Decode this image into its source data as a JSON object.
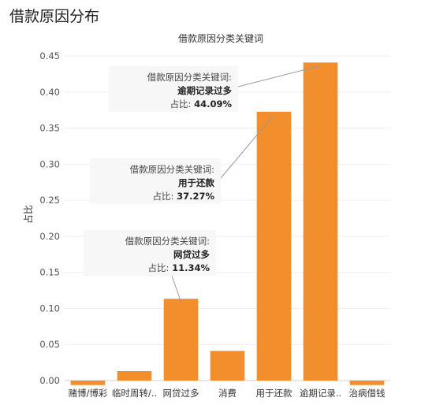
{
  "page_title": "借款原因分布",
  "chart_data": {
    "type": "bar",
    "title": "借款原因分类关键词",
    "xlabel": "",
    "ylabel": "占比",
    "ylim": [
      0,
      0.45
    ],
    "yticks": [
      "0.00",
      "0.05",
      "0.10",
      "0.15",
      "0.20",
      "0.25",
      "0.30",
      "0.35",
      "0.40",
      "0.45"
    ],
    "categories": [
      "赌博/博彩",
      "临时周转/..",
      "网贷过多",
      "消费",
      "用于还款",
      "逾期记录..",
      "治病借钱"
    ],
    "values": [
      -0.0062,
      0.0131,
      0.1134,
      0.0411,
      0.3727,
      0.4409,
      -0.0062
    ],
    "bar_color": "#f28e2b",
    "tooltips": [
      {
        "field_label": "借款原因分类关键词:",
        "category": "逾期记录过多",
        "pct_label": "占比:",
        "pct_value": "44.09%",
        "index": 5
      },
      {
        "field_label": "借款原因分类关键词:",
        "category": "用于还款",
        "pct_label": "占比:",
        "pct_value": "37.27%",
        "index": 4
      },
      {
        "field_label": "借款原因分类关键词:",
        "category": "网贷过多",
        "pct_label": "占比:",
        "pct_value": "11.34%",
        "index": 2
      }
    ]
  }
}
